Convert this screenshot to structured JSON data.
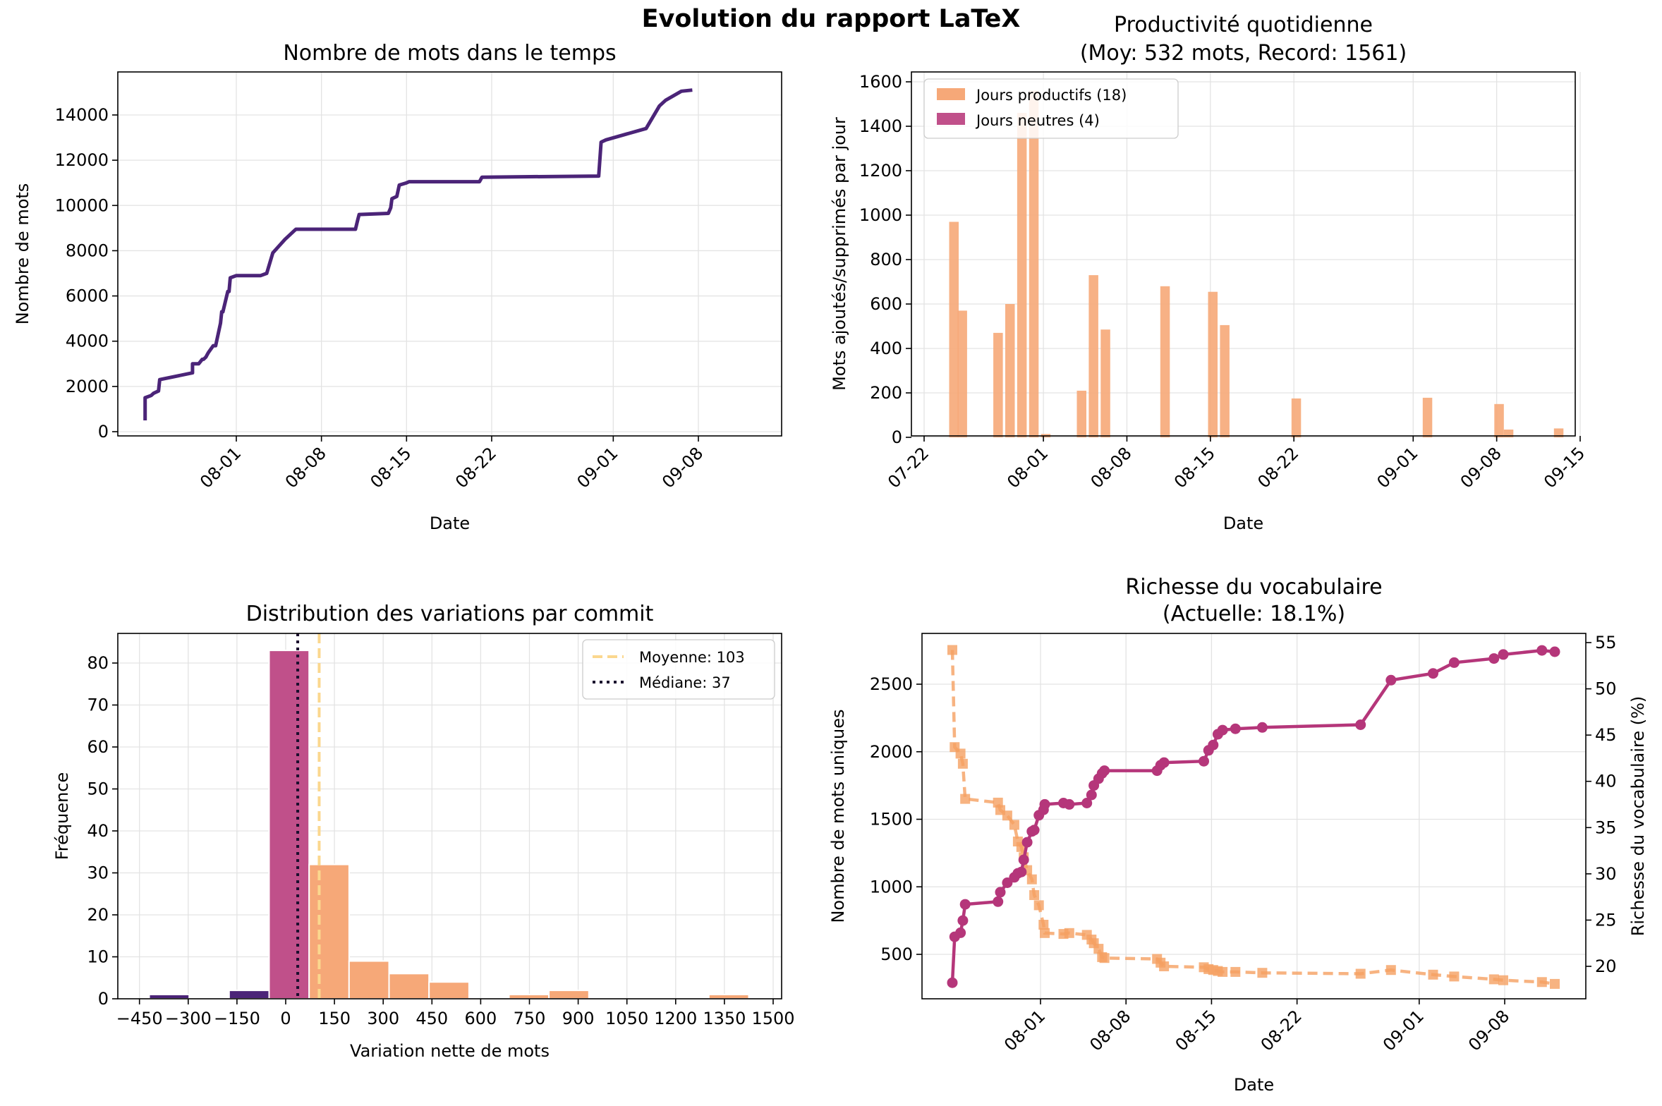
{
  "main_title": "Evolution du rapport LaTeX",
  "colors": {
    "dark_purple": "#4b2478",
    "magenta": "#b5367a",
    "magenta_bar": "#c0508a",
    "peach": "#f6a878",
    "orange": "#f5a062",
    "mean_line": "#fbd78e",
    "median_line": "#1b0f2e"
  },
  "chart_data": [
    {
      "id": "words",
      "type": "line",
      "title": "Nombre de mots dans le temps",
      "xlabel": "Date",
      "ylabel": "Nombre de mots",
      "xticks": [
        "08-01",
        "08-08",
        "08-15",
        "08-22",
        "09-01",
        "09-08"
      ],
      "yticks": [
        "0",
        "2000",
        "4000",
        "6000",
        "8000",
        "10000",
        "12000",
        "14000"
      ],
      "ylim": [
        -300,
        15900
      ],
      "xlim": [
        -10.2,
        45.8
      ],
      "grid": true,
      "x_day_offsets_from_07_22": [
        2.5,
        2.5,
        3.0,
        3.2,
        3.6,
        3.7,
        6.4,
        6.4,
        6.9,
        7.2,
        7.3,
        7.5,
        7.6,
        7.7,
        8.1,
        8.2,
        8.3,
        8.7,
        8.8,
        8.9,
        9.3,
        9.4,
        9.5,
        10.0,
        10.1,
        10.2,
        10.3,
        10.4,
        12.0,
        12.5,
        13.0,
        13.5,
        14.0,
        14.8,
        14.9,
        19.8,
        20.0,
        20.1,
        22.5,
        22.7,
        22.8,
        23.2,
        23.4,
        24.0,
        24.2,
        30.0,
        30.2,
        39.8,
        40.0,
        40.4,
        43.7,
        44.8,
        45.3,
        46.6,
        47.5
      ],
      "y_values": [
        500,
        1500,
        1600,
        1700,
        1800,
        2300,
        2600,
        3000,
        3000,
        3200,
        3200,
        3300,
        3400,
        3500,
        3800,
        3800,
        3800,
        4800,
        5300,
        5300,
        6200,
        6200,
        6800,
        6900,
        6900,
        6900,
        6900,
        6900,
        6900,
        7000,
        7900,
        8200,
        8500,
        8900,
        8950,
        8950,
        9400,
        9600,
        9650,
        9900,
        10300,
        10400,
        10900,
        11000,
        11050,
        11050,
        11250,
        11300,
        12800,
        12900,
        13400,
        14400,
        14650,
        15050,
        15100
      ]
    },
    {
      "id": "productivity",
      "type": "bar",
      "title_line1": "Productivité quotidienne",
      "title_line2": "(Moy: 532 mots, Record: 1561)",
      "xlabel": "Date",
      "ylabel": "Mots ajoutés/supprimés par jour",
      "xticks": [
        "07-22",
        "08-01",
        "08-08",
        "08-15",
        "08-22",
        "09-01",
        "09-08",
        "09-15"
      ],
      "yticks": [
        "0",
        "200",
        "400",
        "600",
        "800",
        "1000",
        "1200",
        "1400",
        "1600"
      ],
      "ylim": [
        0,
        1620
      ],
      "xlim": [
        -0.3,
        54.4
      ],
      "grid": true,
      "legend_position": "top-left",
      "legend": [
        "Jours productifs (18)",
        "Jours neutres (4)"
      ],
      "bars": [
        {
          "day": 2.5,
          "value": 970
        },
        {
          "day": 3.2,
          "value": 570
        },
        {
          "day": 6.2,
          "value": 470
        },
        {
          "day": 7.2,
          "value": 600
        },
        {
          "day": 8.2,
          "value": 1460
        },
        {
          "day": 9.2,
          "value": 1561
        },
        {
          "day": 10.2,
          "value": 15
        },
        {
          "day": 13.2,
          "value": 210
        },
        {
          "day": 14.2,
          "value": 730
        },
        {
          "day": 15.2,
          "value": 485
        },
        {
          "day": 20.2,
          "value": 680
        },
        {
          "day": 24.2,
          "value": 655
        },
        {
          "day": 25.2,
          "value": 505
        },
        {
          "day": 31.2,
          "value": 175
        },
        {
          "day": 42.2,
          "value": 178
        },
        {
          "day": 48.2,
          "value": 150
        },
        {
          "day": 49.0,
          "value": 35
        },
        {
          "day": 53.2,
          "value": 40
        }
      ]
    },
    {
      "id": "distribution",
      "type": "bar",
      "title": "Distribution des variations par commit",
      "xlabel": "Variation nette de mots",
      "ylabel": "Fréquence",
      "xticks": [
        "−450",
        "−300",
        "−150",
        "0",
        "150",
        "300",
        "450",
        "600",
        "750",
        "900",
        "1050",
        "1200",
        "1350",
        "1500"
      ],
      "yticks": [
        "0",
        "10",
        "20",
        "30",
        "40",
        "50",
        "60",
        "70",
        "80"
      ],
      "ylim": [
        0,
        87
      ],
      "xlim": [
        -495,
        1490
      ],
      "grid": true,
      "legend_position": "top-right",
      "legend": [
        "Moyenne: 103",
        "Médiane: 37"
      ],
      "mean": 103,
      "median": 37,
      "bins": [
        {
          "start": -420,
          "end": -297,
          "count": 1
        },
        {
          "start": -174,
          "end": -51,
          "count": 2
        },
        {
          "start": -51,
          "end": 72,
          "count": 83
        },
        {
          "start": 72,
          "end": 195,
          "count": 32
        },
        {
          "start": 195,
          "end": 318,
          "count": 9
        },
        {
          "start": 318,
          "end": 441,
          "count": 6
        },
        {
          "start": 441,
          "end": 564,
          "count": 4
        },
        {
          "start": 687,
          "end": 810,
          "count": 1
        },
        {
          "start": 810,
          "end": 933,
          "count": 2
        },
        {
          "start": 1302,
          "end": 1425,
          "count": 1
        }
      ]
    },
    {
      "id": "vocabulary",
      "type": "line",
      "title_line1": "Richesse du vocabulaire",
      "title_line2": "(Actuelle: 18.1%)",
      "xlabel": "Date",
      "ylabel_left": "Nombre de mots uniques",
      "ylabel_right": "Richesse du vocabulaire (%)",
      "xticks": [
        "08-01",
        "08-08",
        "08-15",
        "08-22",
        "09-01",
        "09-08"
      ],
      "yticks_left": [
        "500",
        "1000",
        "1500",
        "2000",
        "2500"
      ],
      "yticks_right": [
        "20",
        "25",
        "30",
        "35",
        "40",
        "45",
        "50",
        "55"
      ],
      "ylim_left": [
        175,
        2865
      ],
      "ylim_right": [
        16.5,
        55.6
      ],
      "xlim": [
        -10.2,
        45.8
      ],
      "grid": true,
      "x_day_offsets_from_07_22": [
        2.5,
        2.7,
        3.2,
        3.4,
        3.6,
        6.4,
        6.6,
        7.2,
        7.8,
        8.1,
        8.4,
        8.6,
        8.9,
        9.3,
        9.5,
        9.9,
        10.3,
        10.4,
        12.0,
        12.5,
        14.0,
        14.4,
        14.6,
        15.0,
        15.3,
        15.5,
        20.0,
        20.3,
        20.6,
        24.0,
        24.4,
        24.8,
        25.2,
        25.6,
        26.7,
        29.0,
        37.4,
        40.0,
        43.6,
        45.4,
        48.8,
        49.6,
        52.9,
        54.0
      ],
      "unique_words": [
        290,
        630,
        660,
        750,
        870,
        890,
        960,
        1030,
        1070,
        1100,
        1110,
        1200,
        1330,
        1410,
        1420,
        1530,
        1570,
        1610,
        1620,
        1610,
        1620,
        1680,
        1750,
        1800,
        1840,
        1860,
        1860,
        1900,
        1920,
        1930,
        2010,
        2050,
        2130,
        2160,
        2170,
        2180,
        2200,
        2530,
        2580,
        2660,
        2690,
        2720,
        2750,
        2740
      ],
      "richness_pct": [
        54.2,
        43.7,
        43.0,
        41.9,
        38.1,
        37.7,
        36.9,
        36.3,
        35.3,
        33.5,
        32.9,
        31.8,
        30.4,
        29.4,
        27.7,
        26.6,
        24.5,
        23.6,
        23.5,
        23.6,
        23.4,
        22.9,
        22.5,
        21.9,
        21.0,
        20.9,
        20.8,
        20.4,
        20.0,
        19.9,
        19.7,
        19.6,
        19.5,
        19.4,
        19.4,
        19.3,
        19.2,
        19.6,
        19.1,
        18.9,
        18.6,
        18.5,
        18.3,
        18.1
      ]
    }
  ]
}
